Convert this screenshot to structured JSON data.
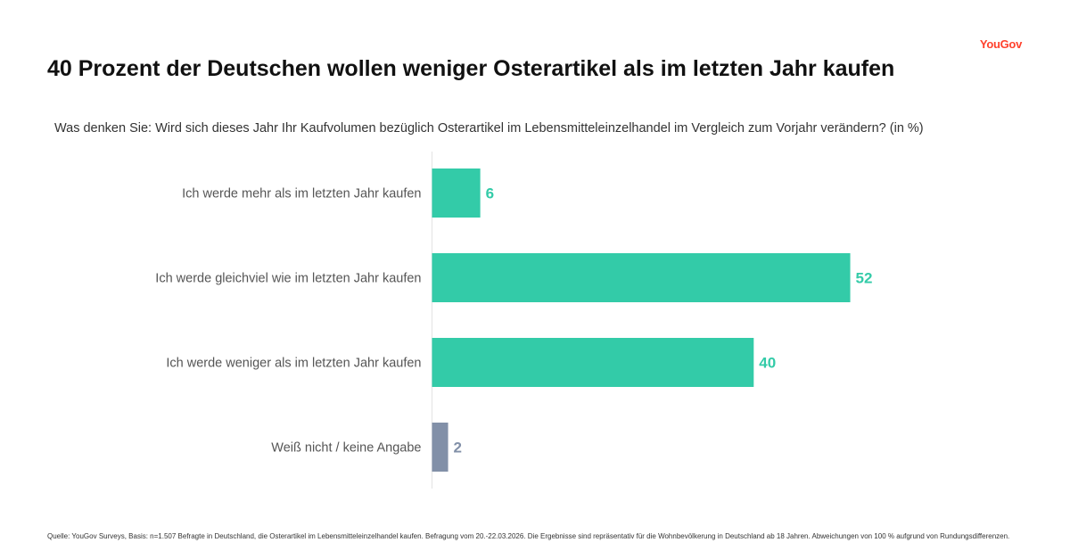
{
  "brand": "YouGov",
  "colors": {
    "primary": "#33cba8",
    "secondary": "#8290a8",
    "brand": "#ff412c"
  },
  "chart_data": {
    "type": "bar",
    "orientation": "horizontal",
    "title": "40 Prozent der Deutschen wollen weniger Osterartikel als im letzten Jahr kaufen",
    "subtitle": "Was denken Sie: Wird sich dieses Jahr Ihr Kaufvolumen bezüglich Osterartikel im Lebensmitteleinzelhandel im Vergleich zum Vorjahr verändern? (in %)",
    "categories": [
      "Ich werde mehr als im letzten Jahr kaufen",
      "Ich werde gleichviel wie im letzten Jahr kaufen",
      "Ich werde weniger als im letzten Jahr kaufen",
      "Weiß nicht / keine Angabe"
    ],
    "values": [
      6,
      52,
      40,
      2
    ],
    "value_labels": [
      "6",
      "52",
      "40",
      "2"
    ],
    "bar_colors": [
      "#33cba8",
      "#33cba8",
      "#33cba8",
      "#8290a8"
    ],
    "xlim": [
      0,
      100
    ],
    "grid": false,
    "unit": "%"
  },
  "footnote": "Quelle: YouGov Surveys, Basis: n=1.507 Befragte in Deutschland, die Osterartikel im Lebensmitteleinzelhandel kaufen. Befragung vom 20.-22.03.2026. Die Ergebnisse sind repräsentativ für die Wohnbevölkerung in Deutschland ab 18 Jahren. Abweichungen von 100 % aufgrund von Rundungsdifferenzen."
}
